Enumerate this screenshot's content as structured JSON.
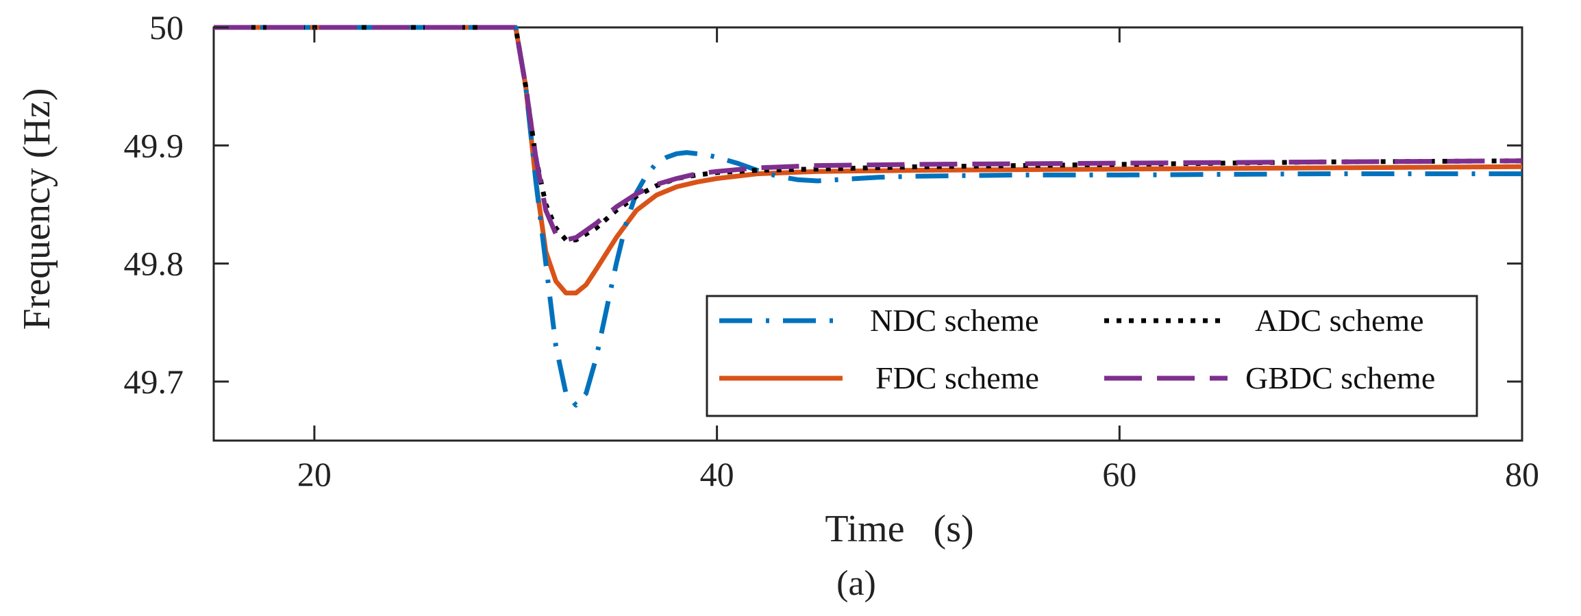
{
  "chart_data": {
    "type": "line",
    "title": "",
    "caption": "(a)",
    "xlabel": "Time   (s)",
    "ylabel": "Frequency  (Hz)",
    "xlim": [
      15,
      80
    ],
    "ylim": [
      49.65,
      50.0
    ],
    "xticks": [
      20,
      40,
      60,
      80
    ],
    "xtick_labels": [
      "20",
      "40",
      "60",
      "80"
    ],
    "yticks": [
      49.7,
      49.8,
      49.9,
      50.0
    ],
    "ytick_labels": [
      "49.7",
      "49.8",
      "49.9",
      "50"
    ],
    "grid": false,
    "legend_position": "lower-right",
    "series": [
      {
        "name": "NDC scheme",
        "color": "#0072BD",
        "style": "dash-dot",
        "x": [
          15,
          30,
          30.5,
          31,
          31.5,
          32,
          32.5,
          33,
          33.5,
          34,
          34.5,
          35,
          35.5,
          36,
          36.5,
          37,
          37.5,
          38,
          38.5,
          39,
          39.5,
          40,
          41,
          42,
          43,
          44,
          45,
          46,
          48,
          50,
          55,
          60,
          70,
          80
        ],
        "values": [
          50.0,
          50.0,
          49.95,
          49.87,
          49.8,
          49.73,
          49.69,
          49.68,
          49.69,
          49.72,
          49.76,
          49.8,
          49.835,
          49.86,
          49.875,
          49.885,
          49.89,
          49.893,
          49.894,
          49.893,
          49.892,
          49.89,
          49.885,
          49.879,
          49.874,
          49.871,
          49.87,
          49.871,
          49.873,
          49.874,
          49.875,
          49.875,
          49.876,
          49.876
        ]
      },
      {
        "name": "ADC scheme",
        "color": "#000000",
        "style": "dotted",
        "x": [
          15,
          30,
          30.5,
          31,
          31.5,
          32,
          32.5,
          33,
          34,
          35,
          36,
          37,
          38,
          39,
          40,
          42,
          45,
          50,
          60,
          70,
          80
        ],
        "values": [
          50.0,
          50.0,
          49.95,
          49.89,
          49.85,
          49.83,
          49.82,
          49.82,
          49.83,
          49.845,
          49.857,
          49.866,
          49.872,
          49.875,
          49.877,
          49.879,
          49.88,
          49.882,
          49.884,
          49.886,
          49.887
        ]
      },
      {
        "name": "FDC scheme",
        "color": "#D95319",
        "style": "solid",
        "x": [
          15,
          30,
          30.5,
          31,
          31.5,
          32,
          32.5,
          33,
          33.5,
          34,
          35,
          36,
          37,
          38,
          39,
          40,
          42,
          45,
          50,
          60,
          70,
          80
        ],
        "values": [
          50.0,
          50.0,
          49.95,
          49.87,
          49.81,
          49.785,
          49.775,
          49.775,
          49.782,
          49.795,
          49.822,
          49.845,
          49.858,
          49.865,
          49.869,
          49.872,
          49.876,
          49.878,
          49.879,
          49.88,
          49.881,
          49.882
        ]
      },
      {
        "name": "GBDC scheme",
        "color": "#7E2F8E",
        "style": "long-dash",
        "x": [
          15,
          30,
          30.5,
          31,
          31.5,
          32,
          32.5,
          33,
          34,
          35,
          36,
          37,
          38,
          39,
          40,
          42,
          45,
          50,
          60,
          70,
          80
        ],
        "values": [
          50.0,
          50.0,
          49.95,
          49.89,
          49.845,
          49.825,
          49.82,
          49.822,
          49.834,
          49.848,
          49.859,
          49.867,
          49.872,
          49.876,
          49.878,
          49.881,
          49.883,
          49.884,
          49.885,
          49.886,
          49.887
        ]
      }
    ]
  }
}
